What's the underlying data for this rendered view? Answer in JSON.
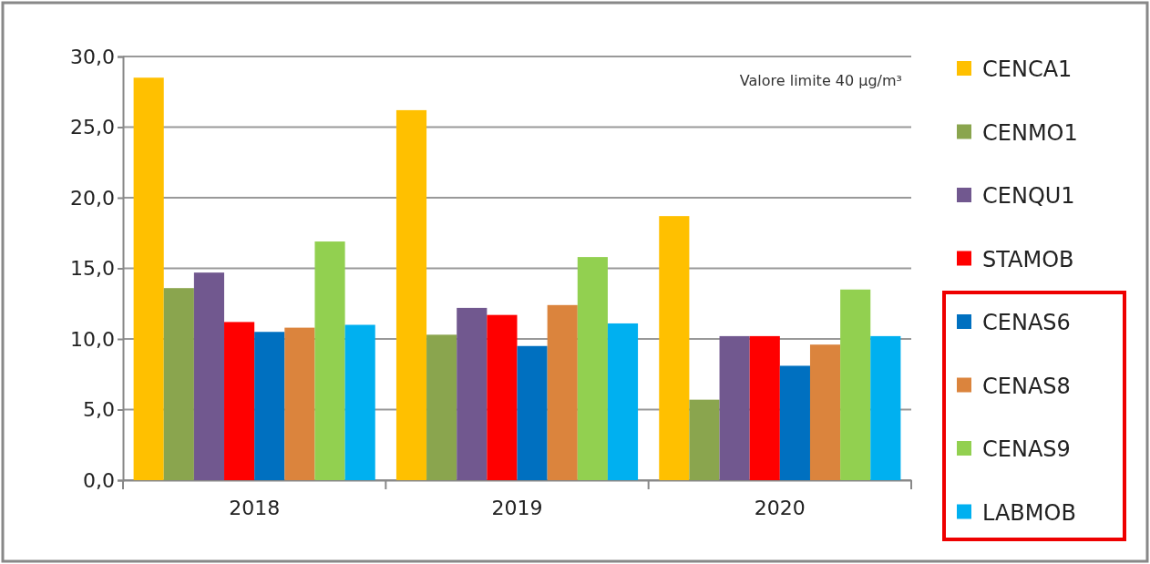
{
  "chart_data": {
    "type": "bar",
    "categories": [
      "2018",
      "2019",
      "2020"
    ],
    "series": [
      {
        "name": "CENCA1",
        "color": "#ffc000",
        "values": [
          28.5,
          26.2,
          18.7
        ]
      },
      {
        "name": "CENMO1",
        "color": "#8aa54e",
        "values": [
          13.6,
          10.3,
          5.7
        ]
      },
      {
        "name": "CENQU1",
        "color": "#71588f",
        "values": [
          14.7,
          12.2,
          10.2
        ]
      },
      {
        "name": "STAMOB",
        "color": "#ff0000",
        "values": [
          11.2,
          11.7,
          10.2
        ]
      },
      {
        "name": "CENAS6",
        "color": "#0070c0",
        "values": [
          10.5,
          9.5,
          8.1
        ]
      },
      {
        "name": "CENAS8",
        "color": "#db843d",
        "values": [
          10.8,
          12.4,
          9.6
        ]
      },
      {
        "name": "CENAS9",
        "color": "#92d050",
        "values": [
          16.9,
          15.8,
          13.5
        ]
      },
      {
        "name": "LABMOB",
        "color": "#00b0f0",
        "values": [
          11.0,
          11.1,
          10.2
        ]
      }
    ],
    "ylim": [
      0,
      30
    ],
    "yticks": [
      {
        "value": 0,
        "label": "0,0"
      },
      {
        "value": 5,
        "label": "5,0"
      },
      {
        "value": 10,
        "label": "10,0"
      },
      {
        "value": 15,
        "label": "15,0"
      },
      {
        "value": 20,
        "label": "20,0"
      },
      {
        "value": 25,
        "label": "25,0"
      },
      {
        "value": 30,
        "label": "30,0"
      }
    ],
    "grid": "y",
    "legend": "right",
    "annotations": [
      "Valore limite 40 µg/m³"
    ]
  }
}
